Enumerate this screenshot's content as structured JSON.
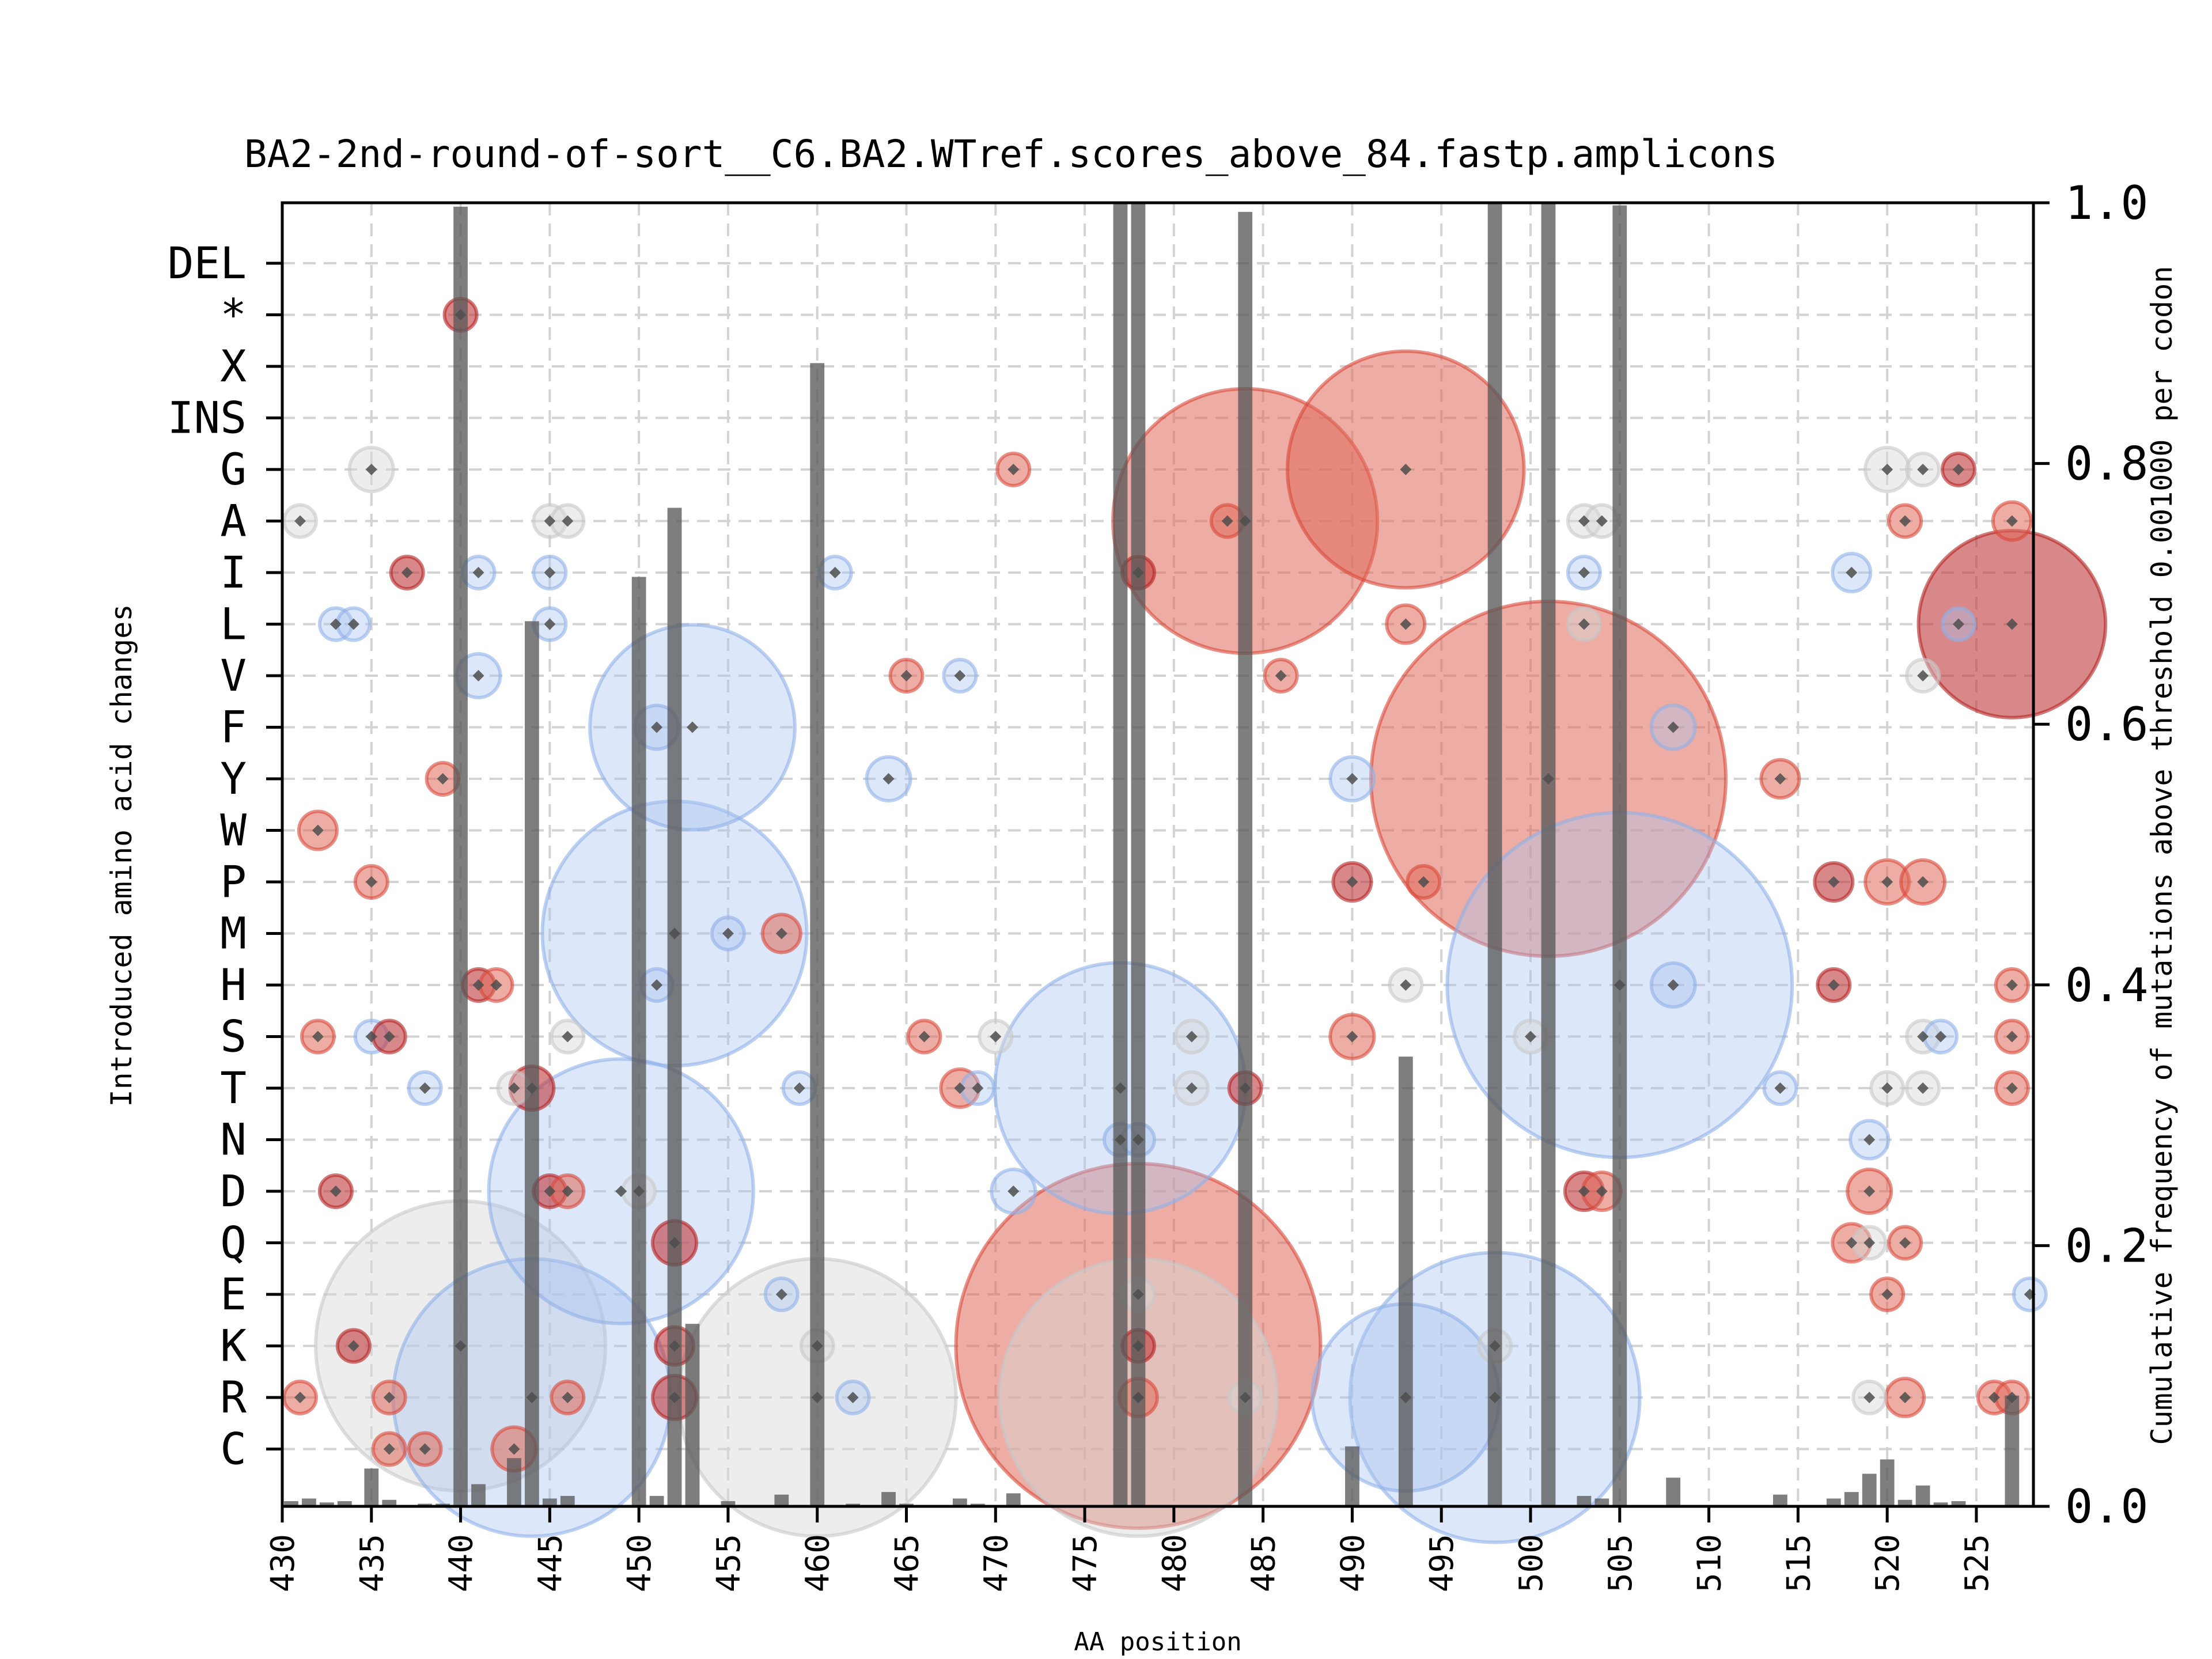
{
  "chart_data": {
    "type": "scatter",
    "subtype": "bubble-plus-bar",
    "title": "BA2-2nd-round-of-sort__C6.BA2.WTref.scores_above_84.fastp.amplicons",
    "xlabel": "AA position",
    "ylabel_left": "Introduced amino acid changes",
    "ylabel_right": "Cumulative frequency of mutations above threshold 0.001000 per codon",
    "xlim": [
      430,
      528.2
    ],
    "ylim_right": [
      0.0,
      1.0
    ],
    "x_ticks": [
      "430",
      "435",
      "440",
      "445",
      "450",
      "455",
      "460",
      "465",
      "470",
      "475",
      "480",
      "485",
      "490",
      "495",
      "500",
      "505",
      "510",
      "515",
      "520",
      "525"
    ],
    "y_right_ticks": [
      "0.0",
      "0.2",
      "0.4",
      "0.6",
      "0.8",
      "1.0"
    ],
    "categories": [
      "DEL",
      "*",
      "X",
      "INS",
      "G",
      "A",
      "I",
      "L",
      "V",
      "F",
      "Y",
      "W",
      "P",
      "M",
      "H",
      "S",
      "T",
      "N",
      "D",
      "Q",
      "E",
      "K",
      "R",
      "C"
    ],
    "grid": true,
    "colors": {
      "red": "#e06a5a",
      "dark_red": "#c0393b",
      "blue": "#a8c4f0",
      "grey": "#d8d8d8",
      "bar": "#5a5a5a"
    },
    "bars": [
      {
        "x": 430.5,
        "freq": 0.004
      },
      {
        "x": 431.5,
        "freq": 0.006
      },
      {
        "x": 432.5,
        "freq": 0.003
      },
      {
        "x": 433.5,
        "freq": 0.004
      },
      {
        "x": 435,
        "freq": 0.029
      },
      {
        "x": 436,
        "freq": 0.005
      },
      {
        "x": 437,
        "freq": 0.001
      },
      {
        "x": 438,
        "freq": 0.002
      },
      {
        "x": 439,
        "freq": 0.002
      },
      {
        "x": 440,
        "freq": 0.997
      },
      {
        "x": 441,
        "freq": 0.017
      },
      {
        "x": 442,
        "freq": 0.001
      },
      {
        "x": 443,
        "freq": 0.037
      },
      {
        "x": 444,
        "freq": 0.679
      },
      {
        "x": 445,
        "freq": 0.006
      },
      {
        "x": 446,
        "freq": 0.008
      },
      {
        "x": 450,
        "freq": 0.713
      },
      {
        "x": 451,
        "freq": 0.008
      },
      {
        "x": 452,
        "freq": 0.766
      },
      {
        "x": 453,
        "freq": 0.14
      },
      {
        "x": 455,
        "freq": 0.004
      },
      {
        "x": 458,
        "freq": 0.009
      },
      {
        "x": 460,
        "freq": 0.877
      },
      {
        "x": 462,
        "freq": 0.002
      },
      {
        "x": 464,
        "freq": 0.011
      },
      {
        "x": 465,
        "freq": 0.002
      },
      {
        "x": 468,
        "freq": 0.006
      },
      {
        "x": 469,
        "freq": 0.002
      },
      {
        "x": 471,
        "freq": 0.01
      },
      {
        "x": 477,
        "freq": 1.0
      },
      {
        "x": 478,
        "freq": 1.0
      },
      {
        "x": 481,
        "freq": 0.001
      },
      {
        "x": 484,
        "freq": 0.993
      },
      {
        "x": 486,
        "freq": 0.001
      },
      {
        "x": 490,
        "freq": 0.046
      },
      {
        "x": 493,
        "freq": 0.345
      },
      {
        "x": 498,
        "freq": 1.0
      },
      {
        "x": 501,
        "freq": 1.0
      },
      {
        "x": 503,
        "freq": 0.008
      },
      {
        "x": 504,
        "freq": 0.006
      },
      {
        "x": 505,
        "freq": 0.998
      },
      {
        "x": 508,
        "freq": 0.022
      },
      {
        "x": 514,
        "freq": 0.009
      },
      {
        "x": 517,
        "freq": 0.006
      },
      {
        "x": 518,
        "freq": 0.011
      },
      {
        "x": 519,
        "freq": 0.025
      },
      {
        "x": 520,
        "freq": 0.036
      },
      {
        "x": 521,
        "freq": 0.005
      },
      {
        "x": 522,
        "freq": 0.016
      },
      {
        "x": 523,
        "freq": 0.003
      },
      {
        "x": 524,
        "freq": 0.004
      },
      {
        "x": 526,
        "freq": 0.001
      },
      {
        "x": 527,
        "freq": 0.085
      }
    ],
    "points": [
      {
        "x": 440,
        "aa": "*",
        "size": 1,
        "color": "dark_red"
      },
      {
        "x": 435,
        "aa": "G",
        "size": 3,
        "color": "grey"
      },
      {
        "x": 471,
        "aa": "G",
        "size": 1,
        "color": "red"
      },
      {
        "x": 493,
        "aa": "G",
        "size": 8,
        "color": "red"
      },
      {
        "x": 520,
        "aa": "G",
        "size": 3,
        "color": "grey"
      },
      {
        "x": 522,
        "aa": "G",
        "size": 1,
        "color": "grey"
      },
      {
        "x": 524,
        "aa": "G",
        "size": 1,
        "color": "dark_red"
      },
      {
        "x": 431,
        "aa": "A",
        "size": 1,
        "color": "grey"
      },
      {
        "x": 445,
        "aa": "A",
        "size": 1,
        "color": "grey"
      },
      {
        "x": 446,
        "aa": "A",
        "size": 1,
        "color": "grey"
      },
      {
        "x": 483,
        "aa": "A",
        "size": 1,
        "color": "red"
      },
      {
        "x": 484,
        "aa": "A",
        "size": 10,
        "color": "red"
      },
      {
        "x": 503,
        "aa": "A",
        "size": 1,
        "color": "grey"
      },
      {
        "x": 504,
        "aa": "A",
        "size": 1,
        "color": "grey"
      },
      {
        "x": 521,
        "aa": "A",
        "size": 1,
        "color": "red"
      },
      {
        "x": 527,
        "aa": "A",
        "size": 1.5,
        "color": "red"
      },
      {
        "x": 437,
        "aa": "I",
        "size": 1,
        "color": "dark_red"
      },
      {
        "x": 441,
        "aa": "I",
        "size": 1,
        "color": "blue"
      },
      {
        "x": 445,
        "aa": "I",
        "size": 1,
        "color": "blue"
      },
      {
        "x": 461,
        "aa": "I",
        "size": 1,
        "color": "blue"
      },
      {
        "x": 478,
        "aa": "I",
        "size": 1,
        "color": "dark_red"
      },
      {
        "x": 503,
        "aa": "I",
        "size": 1,
        "color": "blue"
      },
      {
        "x": 518,
        "aa": "I",
        "size": 1.5,
        "color": "blue"
      },
      {
        "x": 433,
        "aa": "L",
        "size": 1,
        "color": "blue"
      },
      {
        "x": 434,
        "aa": "L",
        "size": 1,
        "color": "blue"
      },
      {
        "x": 445,
        "aa": "L",
        "size": 1,
        "color": "blue"
      },
      {
        "x": 493,
        "aa": "L",
        "size": 1.5,
        "color": "red"
      },
      {
        "x": 503,
        "aa": "L",
        "size": 1,
        "color": "grey"
      },
      {
        "x": 524,
        "aa": "L",
        "size": 1,
        "color": "blue"
      },
      {
        "x": 527,
        "aa": "L",
        "size": 5,
        "color": "dark_red"
      },
      {
        "x": 441,
        "aa": "V",
        "size": 2,
        "color": "blue"
      },
      {
        "x": 465,
        "aa": "V",
        "size": 1,
        "color": "red"
      },
      {
        "x": 468,
        "aa": "V",
        "size": 1,
        "color": "blue"
      },
      {
        "x": 486,
        "aa": "V",
        "size": 1,
        "color": "red"
      },
      {
        "x": 522,
        "aa": "V",
        "size": 1,
        "color": "grey"
      },
      {
        "x": 451,
        "aa": "F",
        "size": 2,
        "color": "blue"
      },
      {
        "x": 453,
        "aa": "F",
        "size": 6,
        "color": "blue"
      },
      {
        "x": 508,
        "aa": "F",
        "size": 2,
        "color": "blue"
      },
      {
        "x": 439,
        "aa": "Y",
        "size": 1,
        "color": "red"
      },
      {
        "x": 464,
        "aa": "Y",
        "size": 2,
        "color": "blue"
      },
      {
        "x": 490,
        "aa": "Y",
        "size": 2,
        "color": "blue"
      },
      {
        "x": 501,
        "aa": "Y",
        "size": 18,
        "color": "red"
      },
      {
        "x": 514,
        "aa": "Y",
        "size": 1.5,
        "color": "red"
      },
      {
        "x": 432,
        "aa": "W",
        "size": 1.5,
        "color": "red"
      },
      {
        "x": 435,
        "aa": "P",
        "size": 1,
        "color": "red"
      },
      {
        "x": 490,
        "aa": "P",
        "size": 1.5,
        "color": "dark_red"
      },
      {
        "x": 494,
        "aa": "P",
        "size": 1,
        "color": "red"
      },
      {
        "x": 517,
        "aa": "P",
        "size": 1.5,
        "color": "dark_red"
      },
      {
        "x": 520,
        "aa": "P",
        "size": 2,
        "color": "red"
      },
      {
        "x": 522,
        "aa": "P",
        "size": 2,
        "color": "red"
      },
      {
        "x": 452,
        "aa": "M",
        "size": 10,
        "color": "blue"
      },
      {
        "x": 455,
        "aa": "M",
        "size": 1,
        "color": "blue"
      },
      {
        "x": 458,
        "aa": "M",
        "size": 1.5,
        "color": "red"
      },
      {
        "x": 441,
        "aa": "H",
        "size": 1,
        "color": "dark_red"
      },
      {
        "x": 442,
        "aa": "H",
        "size": 1,
        "color": "red"
      },
      {
        "x": 451,
        "aa": "H",
        "size": 1,
        "color": "blue"
      },
      {
        "x": 493,
        "aa": "H",
        "size": 1,
        "color": "grey"
      },
      {
        "x": 505,
        "aa": "H",
        "size": 17,
        "color": "blue"
      },
      {
        "x": 508,
        "aa": "H",
        "size": 2,
        "color": "blue"
      },
      {
        "x": 517,
        "aa": "H",
        "size": 1,
        "color": "dark_red"
      },
      {
        "x": 527,
        "aa": "H",
        "size": 1,
        "color": "red"
      },
      {
        "x": 432,
        "aa": "S",
        "size": 1,
        "color": "red"
      },
      {
        "x": 435,
        "aa": "S",
        "size": 1,
        "color": "blue"
      },
      {
        "x": 436,
        "aa": "S",
        "size": 1,
        "color": "dark_red"
      },
      {
        "x": 446,
        "aa": "S",
        "size": 1,
        "color": "grey"
      },
      {
        "x": 466,
        "aa": "S",
        "size": 1,
        "color": "red"
      },
      {
        "x": 470,
        "aa": "S",
        "size": 1,
        "color": "grey"
      },
      {
        "x": 481,
        "aa": "S",
        "size": 1,
        "color": "grey"
      },
      {
        "x": 490,
        "aa": "S",
        "size": 3,
        "color": "red"
      },
      {
        "x": 500,
        "aa": "S",
        "size": 1,
        "color": "grey"
      },
      {
        "x": 522,
        "aa": "S",
        "size": 1,
        "color": "grey"
      },
      {
        "x": 523,
        "aa": "S",
        "size": 1,
        "color": "blue"
      },
      {
        "x": 527,
        "aa": "S",
        "size": 1,
        "color": "red"
      },
      {
        "x": 438,
        "aa": "T",
        "size": 1,
        "color": "blue"
      },
      {
        "x": 443,
        "aa": "T",
        "size": 1,
        "color": "grey"
      },
      {
        "x": 444,
        "aa": "T",
        "size": 2,
        "color": "dark_red"
      },
      {
        "x": 459,
        "aa": "T",
        "size": 1,
        "color": "blue"
      },
      {
        "x": 468,
        "aa": "T",
        "size": 1.5,
        "color": "red"
      },
      {
        "x": 469,
        "aa": "T",
        "size": 1,
        "color": "blue"
      },
      {
        "x": 477,
        "aa": "T",
        "size": 9,
        "color": "blue"
      },
      {
        "x": 481,
        "aa": "T",
        "size": 1,
        "color": "grey"
      },
      {
        "x": 484,
        "aa": "T",
        "size": 1,
        "color": "dark_red"
      },
      {
        "x": 514,
        "aa": "T",
        "size": 1,
        "color": "blue"
      },
      {
        "x": 520,
        "aa": "T",
        "size": 1,
        "color": "grey"
      },
      {
        "x": 522,
        "aa": "T",
        "size": 1,
        "color": "grey"
      },
      {
        "x": 527,
        "aa": "T",
        "size": 1,
        "color": "red"
      },
      {
        "x": 477,
        "aa": "N",
        "size": 1,
        "color": "blue"
      },
      {
        "x": 478,
        "aa": "N",
        "size": 1,
        "color": "blue"
      },
      {
        "x": 519,
        "aa": "N",
        "size": 1.5,
        "color": "blue"
      },
      {
        "x": 433,
        "aa": "D",
        "size": 1,
        "color": "dark_red"
      },
      {
        "x": 445,
        "aa": "D",
        "size": 1,
        "color": "dark_red"
      },
      {
        "x": 446,
        "aa": "D",
        "size": 1,
        "color": "red"
      },
      {
        "x": 450,
        "aa": "D",
        "size": 1,
        "color": "grey"
      },
      {
        "x": 449,
        "aa": "D",
        "size": 10,
        "color": "blue"
      },
      {
        "x": 471,
        "aa": "D",
        "size": 2,
        "color": "blue"
      },
      {
        "x": 503,
        "aa": "D",
        "size": 1.5,
        "color": "dark_red"
      },
      {
        "x": 504,
        "aa": "D",
        "size": 1.5,
        "color": "red"
      },
      {
        "x": 519,
        "aa": "D",
        "size": 2,
        "color": "red"
      },
      {
        "x": 452,
        "aa": "Q",
        "size": 3,
        "color": "dark_red"
      },
      {
        "x": 518,
        "aa": "Q",
        "size": 1.5,
        "color": "red"
      },
      {
        "x": 519,
        "aa": "Q",
        "size": 1,
        "color": "grey"
      },
      {
        "x": 521,
        "aa": "Q",
        "size": 1,
        "color": "red"
      },
      {
        "x": 458,
        "aa": "E",
        "size": 1,
        "color": "blue"
      },
      {
        "x": 478,
        "aa": "E",
        "size": 1,
        "color": "grey"
      },
      {
        "x": 520,
        "aa": "E",
        "size": 1,
        "color": "red"
      },
      {
        "x": 528,
        "aa": "E",
        "size": 1,
        "color": "blue"
      },
      {
        "x": 440,
        "aa": "K",
        "size": 12,
        "color": "grey"
      },
      {
        "x": 434,
        "aa": "K",
        "size": 1,
        "color": "dark_red"
      },
      {
        "x": 452,
        "aa": "K",
        "size": 1.5,
        "color": "dark_red"
      },
      {
        "x": 460,
        "aa": "K",
        "size": 1,
        "color": "grey"
      },
      {
        "x": 478,
        "aa": "K",
        "size": 19,
        "color": "red"
      },
      {
        "x": 478,
        "aa": "K",
        "size": 1,
        "color": "dark_red"
      },
      {
        "x": 498,
        "aa": "K",
        "size": 1,
        "color": "grey"
      },
      {
        "x": 431,
        "aa": "R",
        "size": 1,
        "color": "red"
      },
      {
        "x": 436,
        "aa": "R",
        "size": 1,
        "color": "red"
      },
      {
        "x": 444,
        "aa": "R",
        "size": 11,
        "color": "blue"
      },
      {
        "x": 446,
        "aa": "R",
        "size": 1,
        "color": "red"
      },
      {
        "x": 452,
        "aa": "R",
        "size": 2,
        "color": "dark_red"
      },
      {
        "x": 460,
        "aa": "R",
        "size": 11,
        "color": "grey"
      },
      {
        "x": 462,
        "aa": "R",
        "size": 1,
        "color": "blue"
      },
      {
        "x": 478,
        "aa": "R",
        "size": 11,
        "color": "grey"
      },
      {
        "x": 478,
        "aa": "R",
        "size": 1.5,
        "color": "red"
      },
      {
        "x": 484,
        "aa": "R",
        "size": 1,
        "color": "grey"
      },
      {
        "x": 493,
        "aa": "R",
        "size": 5,
        "color": "blue"
      },
      {
        "x": 498,
        "aa": "R",
        "size": 12,
        "color": "blue"
      },
      {
        "x": 519,
        "aa": "R",
        "size": 1,
        "color": "grey"
      },
      {
        "x": 521,
        "aa": "R",
        "size": 1.5,
        "color": "red"
      },
      {
        "x": 526,
        "aa": "R",
        "size": 1,
        "color": "red"
      },
      {
        "x": 527,
        "aa": "R",
        "size": 1,
        "color": "red"
      },
      {
        "x": 436,
        "aa": "C",
        "size": 1,
        "color": "red"
      },
      {
        "x": 438,
        "aa": "C",
        "size": 1,
        "color": "red"
      },
      {
        "x": 443,
        "aa": "C",
        "size": 3,
        "color": "red"
      }
    ]
  }
}
